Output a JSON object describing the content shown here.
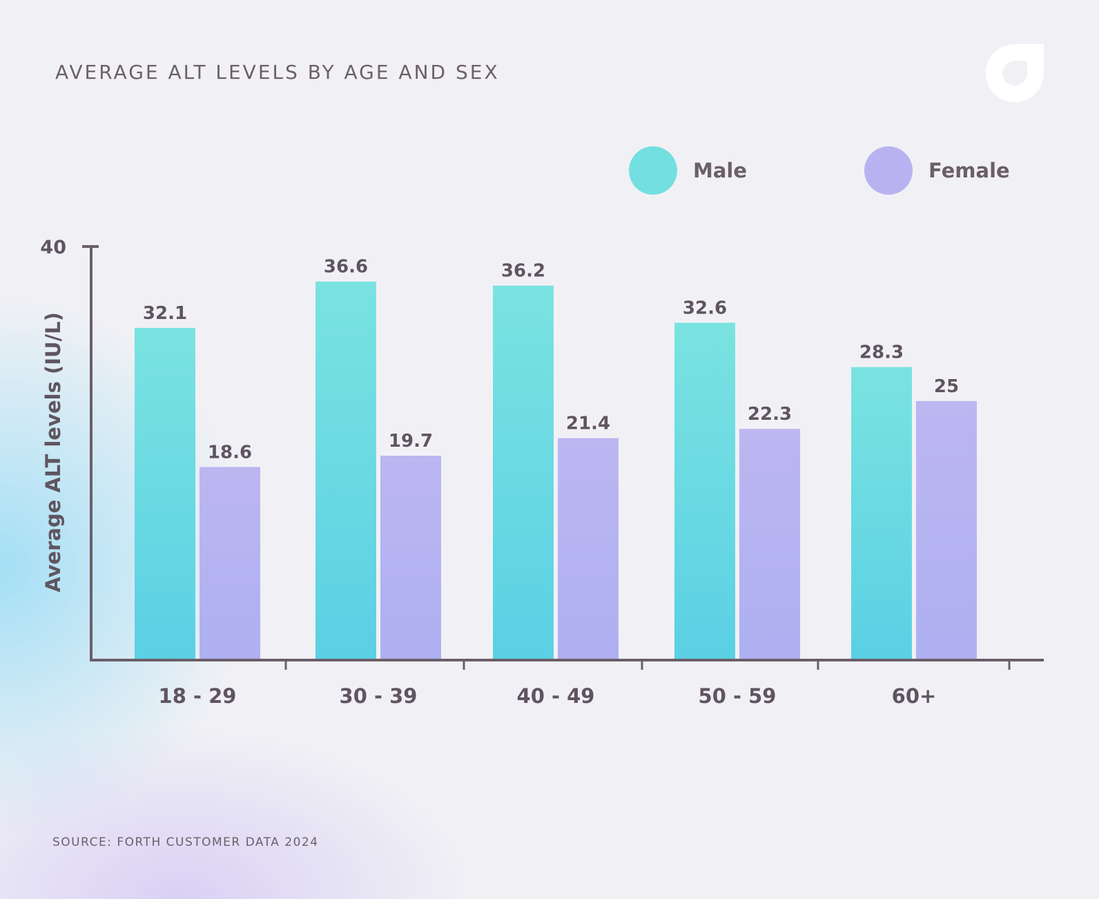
{
  "title": "AVERAGE ALT LEVELS BY AGE AND SEX",
  "source": "SOURCE: FORTH CUSTOMER DATA 2024",
  "logo_icon": "forth-logo-icon",
  "colors": {
    "male": "#73dfe0",
    "female": "#b8b3f0",
    "text": "#6b5f69",
    "axis": "#6b5f69"
  },
  "chart_data": {
    "type": "bar",
    "title": "AVERAGE ALT LEVELS BY AGE AND SEX",
    "ylabel": "Average ALT levels (IU/L)",
    "xlabel": "",
    "ylim": [
      0,
      40
    ],
    "yticks": [
      40
    ],
    "grid": false,
    "legend": "top-right",
    "categories": [
      "18 - 29",
      "30 - 39",
      "40 - 49",
      "50 - 59",
      "60+"
    ],
    "series": [
      {
        "name": "Male",
        "values": [
          32.1,
          36.6,
          36.2,
          32.6,
          28.3
        ]
      },
      {
        "name": "Female",
        "values": [
          18.6,
          19.7,
          21.4,
          22.3,
          25
        ]
      }
    ]
  }
}
